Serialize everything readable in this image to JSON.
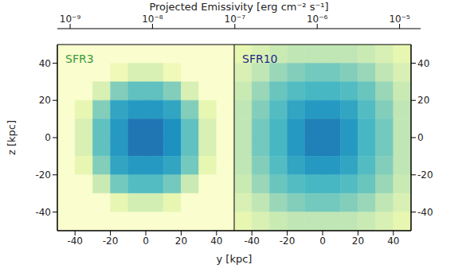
{
  "chart_data": [
    {
      "type": "heatmap",
      "title": "SFR3",
      "color": "#3a9a3a",
      "xlabel": "y [kpc]",
      "ylabel": "z [kpc]",
      "xlim": [
        -50,
        50
      ],
      "ylim": [
        -50,
        50
      ],
      "xticks": [
        -40,
        -20,
        0,
        20,
        40
      ],
      "yticks": [
        -40,
        -20,
        0,
        20,
        40
      ],
      "x": [
        -45,
        -35,
        -25,
        -15,
        -5,
        5,
        15,
        25,
        35,
        45
      ],
      "y": [
        45,
        35,
        25,
        15,
        5,
        -5,
        -15,
        -25,
        -35,
        -45
      ],
      "cells": [
        [
          1e-09,
          1e-09,
          1e-09,
          1e-09,
          1e-09,
          1e-09,
          1e-09,
          1e-09,
          1e-09,
          1e-09
        ],
        [
          1e-09,
          1e-09,
          1e-09,
          2e-09,
          5e-09,
          5e-09,
          2e-09,
          1e-09,
          1e-09,
          1e-09
        ],
        [
          1e-09,
          1e-09,
          5e-09,
          3e-08,
          6e-08,
          6e-08,
          3e-08,
          5e-09,
          1e-09,
          1e-09
        ],
        [
          1e-09,
          3e-09,
          3e-08,
          2e-07,
          3e-07,
          3e-07,
          2e-07,
          3e-08,
          3e-09,
          1e-09
        ],
        [
          1e-09,
          5e-09,
          6e-08,
          3e-07,
          8e-07,
          8e-07,
          4e-07,
          6e-08,
          5e-09,
          1e-09
        ],
        [
          1e-09,
          5e-09,
          6e-08,
          3e-07,
          8e-07,
          8e-07,
          4e-07,
          6e-08,
          5e-09,
          1e-09
        ],
        [
          1e-09,
          3e-09,
          3e-08,
          2e-07,
          3e-07,
          3e-07,
          2e-07,
          4e-08,
          3e-09,
          1e-09
        ],
        [
          1e-09,
          1e-09,
          8e-09,
          4e-08,
          8e-08,
          8e-08,
          4e-08,
          8e-09,
          1e-09,
          1e-09
        ],
        [
          1e-09,
          1e-09,
          1e-09,
          3e-09,
          6e-09,
          6e-09,
          3e-09,
          1e-09,
          1e-09,
          1e-09
        ],
        [
          1e-09,
          1e-09,
          1e-09,
          1e-09,
          1e-09,
          1e-09,
          1e-09,
          1e-09,
          1e-09,
          1e-09
        ]
      ]
    },
    {
      "type": "heatmap",
      "title": "SFR10",
      "color": "#1a2a8a",
      "xlim": [
        -50,
        50
      ],
      "ylim": [
        -50,
        50
      ],
      "xticks": [
        -40,
        -20,
        0,
        20,
        40
      ],
      "yticks": [
        -40,
        -20,
        0,
        20,
        40
      ],
      "x": [
        -45,
        -35,
        -25,
        -15,
        -5,
        5,
        15,
        25,
        35,
        45
      ],
      "y": [
        45,
        35,
        25,
        15,
        5,
        -5,
        -15,
        -25,
        -35,
        -45
      ],
      "cells": [
        [
          3e-09,
          5e-09,
          8e-09,
          1e-08,
          1e-08,
          1e-08,
          1e-08,
          8e-09,
          5e-09,
          3e-09
        ],
        [
          5e-09,
          1e-08,
          2e-08,
          3e-08,
          4e-08,
          4e-08,
          3e-08,
          2e-08,
          1e-08,
          5e-09
        ],
        [
          8e-09,
          2e-08,
          5e-08,
          8e-08,
          1e-07,
          1e-07,
          8e-08,
          5e-08,
          2e-08,
          8e-09
        ],
        [
          1e-08,
          3e-08,
          8e-08,
          2e-07,
          3e-07,
          3e-07,
          2e-07,
          8e-08,
          3e-08,
          1e-08
        ],
        [
          1e-08,
          4e-08,
          1e-07,
          3e-07,
          6e-07,
          6e-07,
          3e-07,
          1e-07,
          4e-08,
          1e-08
        ],
        [
          1e-08,
          4e-08,
          1e-07,
          3e-07,
          6e-07,
          6e-07,
          3e-07,
          1e-07,
          4e-08,
          1e-08
        ],
        [
          1e-08,
          3e-08,
          8e-08,
          2e-07,
          3e-07,
          3e-07,
          2e-07,
          8e-08,
          3e-08,
          1e-08
        ],
        [
          8e-09,
          2e-08,
          5e-08,
          8e-08,
          1e-07,
          1e-07,
          8e-08,
          5e-08,
          2e-08,
          8e-09
        ],
        [
          5e-09,
          1e-08,
          2e-08,
          3e-08,
          4e-08,
          4e-08,
          3e-08,
          2e-08,
          1e-08,
          5e-09
        ],
        [
          3e-09,
          5e-09,
          8e-09,
          1e-08,
          1e-08,
          1e-08,
          1e-08,
          8e-09,
          5e-09,
          3e-09
        ]
      ]
    }
  ],
  "colorbar": {
    "label": "Projected Emissivity [erg cm⁻² s⁻¹]",
    "log": true,
    "lim": [
      7e-10,
      1.8e-05
    ],
    "ticks": [
      {
        "value": 1e-09,
        "label": "10⁻⁹"
      },
      {
        "value": 1e-08,
        "label": "10⁻⁸"
      },
      {
        "value": 1e-07,
        "label": "10⁻⁷"
      },
      {
        "value": 1e-06,
        "label": "10⁻⁶"
      },
      {
        "value": 1e-05,
        "label": "10⁻⁵"
      }
    ]
  }
}
